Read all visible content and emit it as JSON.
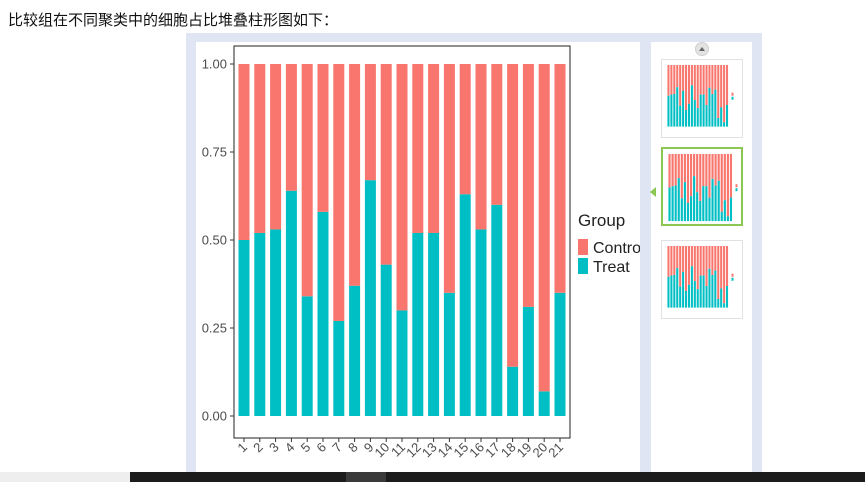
{
  "heading": "比较组在不同聚类中的细胞占比堆叠柱形图如下：",
  "colors": {
    "control": "#F8766D",
    "treat": "#00BFC4",
    "viewer_bg": "#dfe5f3",
    "active_border": "#8cc653"
  },
  "icons": {
    "scroll_up": "chevron-up-icon",
    "active_thumb_marker": "triangle-left-icon"
  },
  "chart_data": {
    "type": "bar",
    "stacked": true,
    "categories": [
      "1",
      "2",
      "3",
      "4",
      "5",
      "6",
      "7",
      "8",
      "9",
      "10",
      "11",
      "12",
      "13",
      "14",
      "15",
      "16",
      "17",
      "18",
      "19",
      "20",
      "21"
    ],
    "series": [
      {
        "name": "Control",
        "color": "#F8766D",
        "values": [
          0.5,
          0.48,
          0.47,
          0.36,
          0.66,
          0.42,
          0.73,
          0.63,
          0.33,
          0.57,
          0.7,
          0.48,
          0.48,
          0.65,
          0.37,
          0.47,
          0.4,
          0.86,
          0.69,
          0.93,
          0.65
        ]
      },
      {
        "name": "Treat",
        "color": "#00BFC4",
        "values": [
          0.5,
          0.52,
          0.53,
          0.64,
          0.34,
          0.58,
          0.27,
          0.37,
          0.67,
          0.43,
          0.3,
          0.52,
          0.52,
          0.35,
          0.63,
          0.53,
          0.6,
          0.14,
          0.31,
          0.07,
          0.35
        ]
      }
    ],
    "y_ticks": [
      "0.00",
      "0.25",
      "0.50",
      "0.75",
      "1.00"
    ],
    "ylim": [
      0,
      1
    ],
    "legend": {
      "title": "Group",
      "entries": [
        "Control",
        "Treat"
      ],
      "placement": "right"
    },
    "grid": false
  }
}
